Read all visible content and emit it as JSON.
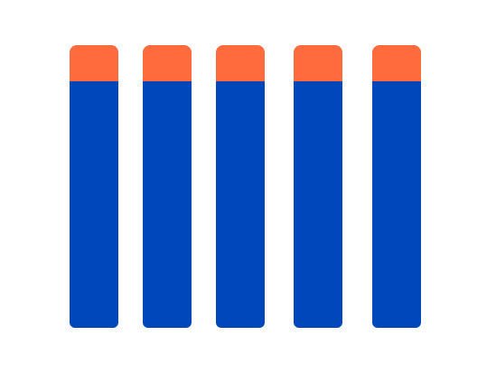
{
  "colors": {
    "background": "#ffffff",
    "tip": "#FF6B3D",
    "body": "#0047BB"
  },
  "darts": [
    {
      "icon": "foam-dart-icon"
    },
    {
      "icon": "foam-dart-icon"
    },
    {
      "icon": "foam-dart-icon"
    },
    {
      "icon": "foam-dart-icon"
    },
    {
      "icon": "foam-dart-icon"
    }
  ]
}
